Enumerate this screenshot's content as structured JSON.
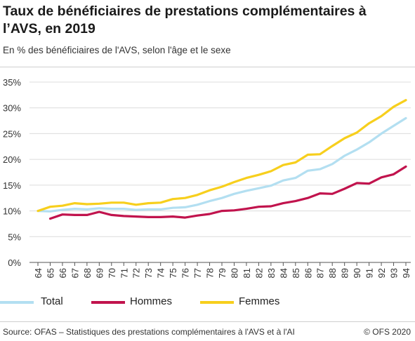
{
  "header": {
    "title": "Taux de bénéficiaires de prestations complémentaires à l’AVS, en 2019",
    "subtitle": "En % des bénéficiaires de l'AVS, selon l'âge et le sexe"
  },
  "footer": {
    "source": "Source: OFAS – Statistiques des prestations complémentaires à l'AVS et à l'AI",
    "copyright": "© OFS 2020"
  },
  "chart_data": {
    "type": "line",
    "title": "Taux de bénéficiaires de prestations complémentaires à l’AVS, en 2019",
    "subtitle": "En % des bénéficiaires de l'AVS, selon l'âge et le sexe",
    "xlabel": "",
    "ylabel": "",
    "x": [
      "64",
      "65",
      "66",
      "67",
      "68",
      "69",
      "70",
      "71",
      "72",
      "73",
      "74",
      "75",
      "76",
      "77",
      "78",
      "79",
      "80",
      "81",
      "82",
      "83",
      "84",
      "85",
      "86",
      "87",
      "88",
      "89",
      "90",
      "91",
      "92",
      "93",
      "94"
    ],
    "ylim": [
      0,
      35
    ],
    "yticks": [
      0,
      5,
      10,
      15,
      20,
      25,
      30,
      35
    ],
    "ytick_labels": [
      "0%",
      "5%",
      "10%",
      "15%",
      "20%",
      "25%",
      "30%",
      "35%"
    ],
    "grid": "horizontal",
    "legend_position": "bottom",
    "series": [
      {
        "name": "Total",
        "color": "#b3dff1",
        "values": [
          10.0,
          9.9,
          10.2,
          10.4,
          10.3,
          10.5,
          10.4,
          10.4,
          10.2,
          10.3,
          10.3,
          10.6,
          10.7,
          11.2,
          11.9,
          12.5,
          13.3,
          13.9,
          14.4,
          14.9,
          15.9,
          16.4,
          17.8,
          18.1,
          19.1,
          20.7,
          21.9,
          23.3,
          25.0,
          26.5,
          28.0
        ]
      },
      {
        "name": "Hommes",
        "color": "#c1134d",
        "values": [
          null,
          8.5,
          9.3,
          9.2,
          9.2,
          9.8,
          9.2,
          9.0,
          8.9,
          8.8,
          8.8,
          8.9,
          8.7,
          9.1,
          9.4,
          10.0,
          10.1,
          10.4,
          10.8,
          10.9,
          11.5,
          11.9,
          12.5,
          13.4,
          13.3,
          14.3,
          15.4,
          15.3,
          16.5,
          17.1,
          18.6
        ]
      },
      {
        "name": "Femmes",
        "color": "#f7cf1d",
        "values": [
          10.0,
          10.8,
          11.0,
          11.5,
          11.3,
          11.4,
          11.6,
          11.6,
          11.2,
          11.5,
          11.6,
          12.3,
          12.5,
          13.1,
          14.0,
          14.7,
          15.6,
          16.4,
          17.0,
          17.7,
          18.9,
          19.4,
          20.9,
          21.0,
          22.6,
          24.1,
          25.2,
          27.0,
          28.4,
          30.2,
          31.5
        ]
      }
    ]
  }
}
